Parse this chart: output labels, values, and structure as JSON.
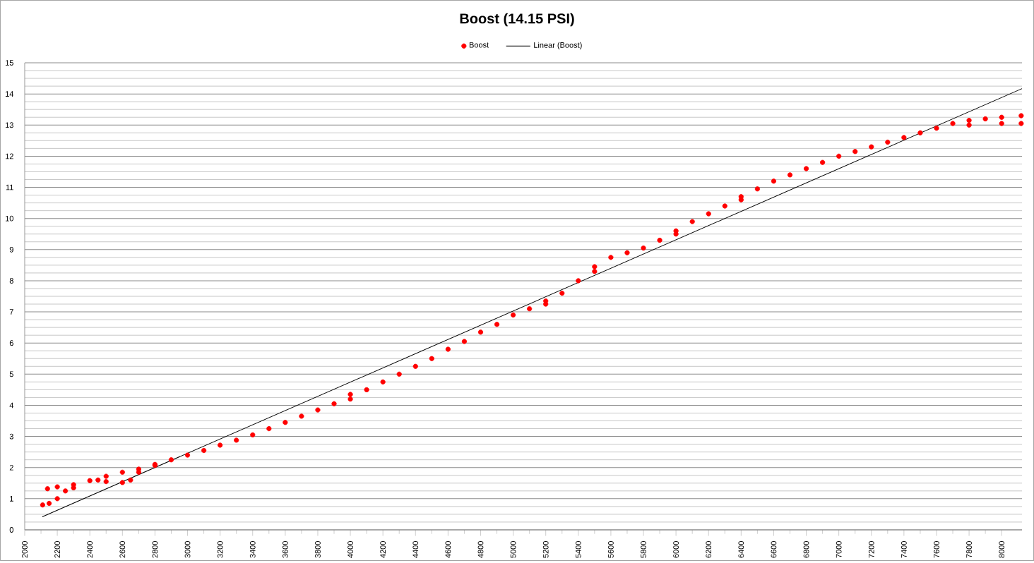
{
  "chart_data": {
    "type": "scatter",
    "title": "Boost (14.15 PSI)",
    "legend": "top",
    "grid": "y",
    "xlim": [
      2000,
      8125
    ],
    "ylim": [
      0,
      15
    ],
    "xticks": [
      2000,
      2200,
      2400,
      2600,
      2800,
      3000,
      3200,
      3400,
      3600,
      3800,
      4000,
      4200,
      4400,
      4600,
      4800,
      5000,
      5200,
      5400,
      5600,
      5800,
      6000,
      6200,
      6400,
      6600,
      6800,
      7000,
      7200,
      7400,
      7600,
      7800,
      8000
    ],
    "yticks": [
      0,
      1,
      2,
      3,
      4,
      5,
      6,
      7,
      8,
      9,
      10,
      11,
      12,
      13,
      14,
      15
    ],
    "series": [
      {
        "name": "Boost",
        "color": "#ff0000",
        "marker": "circle",
        "x": [
          2110,
          2150,
          2200,
          2250,
          2300,
          2140,
          2200,
          2300,
          2400,
          2500,
          2600,
          2700,
          2800,
          2450,
          2500,
          2600,
          2650,
          2700,
          2800,
          2900,
          3000,
          3100,
          3200,
          3300,
          3400,
          3500,
          3600,
          3700,
          3800,
          3900,
          4000,
          4000,
          4100,
          4200,
          4300,
          4400,
          4500,
          4600,
          4700,
          4800,
          4900,
          5000,
          5100,
          5200,
          5200,
          5300,
          5400,
          5500,
          5500,
          5600,
          5700,
          5800,
          5900,
          6000,
          6000,
          6100,
          6200,
          6300,
          6400,
          6400,
          6500,
          6600,
          6700,
          6800,
          6900,
          7000,
          7100,
          7200,
          7300,
          7400,
          7500,
          7600,
          7700,
          7800,
          7800,
          7900,
          8000,
          8000,
          8120,
          8120
        ],
        "values": [
          0.8,
          0.85,
          1.0,
          1.25,
          1.35,
          1.32,
          1.38,
          1.45,
          1.58,
          1.72,
          1.85,
          1.95,
          2.1,
          1.6,
          1.55,
          1.52,
          1.6,
          1.85,
          2.07,
          2.25,
          2.4,
          2.55,
          2.72,
          2.88,
          3.05,
          3.25,
          3.45,
          3.65,
          3.85,
          4.05,
          4.2,
          4.35,
          4.5,
          4.75,
          5.0,
          5.25,
          5.5,
          5.8,
          6.05,
          6.35,
          6.6,
          6.9,
          7.1,
          7.35,
          7.25,
          7.6,
          8.0,
          8.45,
          8.3,
          8.75,
          8.9,
          9.05,
          9.3,
          9.6,
          9.5,
          9.9,
          10.15,
          10.4,
          10.7,
          10.6,
          10.95,
          11.2,
          11.4,
          11.6,
          11.8,
          12.0,
          12.15,
          12.3,
          12.45,
          12.6,
          12.75,
          12.9,
          13.05,
          13.15,
          13.0,
          13.2,
          13.25,
          13.05,
          13.3,
          13.05
        ]
      },
      {
        "name": "Linear (Boost)",
        "type": "line",
        "color": "#000000",
        "marker": "none",
        "x": [
          2108,
          8125
        ],
        "values": [
          0.42,
          14.17
        ]
      }
    ]
  }
}
